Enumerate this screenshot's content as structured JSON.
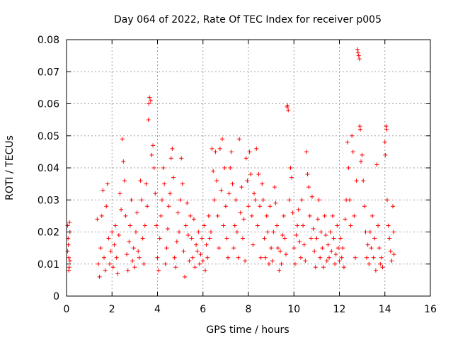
{
  "chart_data": {
    "type": "scatter",
    "title": "Day 064 of 2022, Rate Of TEC Index for receiver p005",
    "xlabel": "GPS time / hours",
    "ylabel": "ROTI / TECUs",
    "xlim": [
      0,
      16
    ],
    "ylim": [
      0,
      0.08
    ],
    "xticks": [
      0,
      2,
      4,
      6,
      8,
      10,
      12,
      14,
      16
    ],
    "xtick_labels": [
      "0",
      "2",
      "4",
      "6",
      "8",
      "10",
      "12",
      "14",
      "16"
    ],
    "yticks": [
      0,
      0.01,
      0.02,
      0.03,
      0.04,
      0.05,
      0.06,
      0.07,
      0.08
    ],
    "ytick_labels": [
      "0",
      "0.01",
      "0.02",
      "0.03",
      "0.04",
      "0.05",
      "0.06",
      "0.07",
      "0.08"
    ],
    "grid": true,
    "marker": "+",
    "color": "#ff0000",
    "series": [
      {
        "name": "ROTI",
        "points": [
          [
            0.05,
            0.022
          ],
          [
            0.08,
            0.016
          ],
          [
            0.1,
            0.012
          ],
          [
            0.12,
            0.009
          ],
          [
            0.15,
            0.02
          ],
          [
            0.05,
            0.014
          ],
          [
            0.1,
            0.008
          ],
          [
            0.13,
            0.023
          ],
          [
            0.07,
            0.018
          ],
          [
            0.15,
            0.011
          ],
          [
            1.35,
            0.024
          ],
          [
            1.4,
            0.01
          ],
          [
            1.45,
            0.006
          ],
          [
            1.5,
            0.015
          ],
          [
            1.55,
            0.025
          ],
          [
            1.6,
            0.033
          ],
          [
            1.65,
            0.012
          ],
          [
            1.7,
            0.008
          ],
          [
            1.75,
            0.028
          ],
          [
            1.8,
            0.035
          ],
          [
            1.85,
            0.018
          ],
          [
            1.9,
            0.01
          ],
          [
            1.95,
            0.014
          ],
          [
            2.0,
            0.02
          ],
          [
            2.05,
            0.009
          ],
          [
            2.1,
            0.016
          ],
          [
            2.15,
            0.022
          ],
          [
            2.2,
            0.012
          ],
          [
            2.25,
            0.007
          ],
          [
            2.3,
            0.019
          ],
          [
            2.35,
            0.032
          ],
          [
            2.4,
            0.027
          ],
          [
            2.45,
            0.049
          ],
          [
            2.5,
            0.042
          ],
          [
            2.55,
            0.036
          ],
          [
            2.6,
            0.025
          ],
          [
            2.65,
            0.013
          ],
          [
            2.7,
            0.008
          ],
          [
            2.75,
            0.017
          ],
          [
            2.8,
            0.022
          ],
          [
            2.85,
            0.03
          ],
          [
            2.9,
            0.011
          ],
          [
            2.95,
            0.015
          ],
          [
            3.0,
            0.009
          ],
          [
            3.05,
            0.02
          ],
          [
            3.1,
            0.026
          ],
          [
            3.15,
            0.014
          ],
          [
            3.2,
            0.012
          ],
          [
            3.25,
            0.036
          ],
          [
            3.3,
            0.03
          ],
          [
            3.35,
            0.018
          ],
          [
            3.4,
            0.01
          ],
          [
            3.45,
            0.022
          ],
          [
            3.5,
            0.035
          ],
          [
            3.55,
            0.028
          ],
          [
            3.6,
            0.055
          ],
          [
            3.62,
            0.06
          ],
          [
            3.65,
            0.062
          ],
          [
            3.7,
            0.061
          ],
          [
            3.75,
            0.044
          ],
          [
            3.8,
            0.047
          ],
          [
            3.85,
            0.04
          ],
          [
            3.9,
            0.032
          ],
          [
            3.95,
            0.022
          ],
          [
            4.0,
            0.012
          ],
          [
            4.05,
            0.008
          ],
          [
            4.1,
            0.018
          ],
          [
            4.15,
            0.025
          ],
          [
            4.2,
            0.03
          ],
          [
            4.25,
            0.04
          ],
          [
            4.3,
            0.035
          ],
          [
            4.35,
            0.01
          ],
          [
            4.4,
            0.015
          ],
          [
            4.45,
            0.021
          ],
          [
            4.5,
            0.028
          ],
          [
            4.55,
            0.032
          ],
          [
            4.6,
            0.043
          ],
          [
            4.65,
            0.046
          ],
          [
            4.7,
            0.037
          ],
          [
            4.75,
            0.012
          ],
          [
            4.8,
            0.009
          ],
          [
            4.85,
            0.017
          ],
          [
            4.9,
            0.026
          ],
          [
            4.95,
            0.02
          ],
          [
            5.0,
            0.03
          ],
          [
            5.05,
            0.043
          ],
          [
            5.1,
            0.035
          ],
          [
            5.15,
            0.014
          ],
          [
            5.2,
            0.006
          ],
          [
            5.25,
            0.022
          ],
          [
            5.3,
            0.029
          ],
          [
            5.35,
            0.019
          ],
          [
            5.4,
            0.011
          ],
          [
            5.45,
            0.025
          ],
          [
            5.5,
            0.018
          ],
          [
            5.55,
            0.012
          ],
          [
            5.6,
            0.024
          ],
          [
            5.65,
            0.009
          ],
          [
            5.7,
            0.016
          ],
          [
            5.75,
            0.014
          ],
          [
            5.8,
            0.02
          ],
          [
            5.85,
            0.01
          ],
          [
            5.9,
            0.013
          ],
          [
            5.95,
            0.018
          ],
          [
            6.0,
            0.011
          ],
          [
            6.05,
            0.022
          ],
          [
            6.1,
            0.008
          ],
          [
            6.15,
            0.016
          ],
          [
            6.2,
            0.012
          ],
          [
            6.25,
            0.025
          ],
          [
            6.3,
            0.018
          ],
          [
            6.35,
            0.02
          ],
          [
            6.4,
            0.046
          ],
          [
            6.45,
            0.039
          ],
          [
            6.5,
            0.03
          ],
          [
            6.55,
            0.045
          ],
          [
            6.6,
            0.036
          ],
          [
            6.65,
            0.025
          ],
          [
            6.7,
            0.015
          ],
          [
            6.75,
            0.046
          ],
          [
            6.8,
            0.033
          ],
          [
            6.85,
            0.049
          ],
          [
            6.9,
            0.022
          ],
          [
            6.95,
            0.04
          ],
          [
            7.0,
            0.028
          ],
          [
            7.05,
            0.018
          ],
          [
            7.1,
            0.012
          ],
          [
            7.15,
            0.032
          ],
          [
            7.2,
            0.04
          ],
          [
            7.25,
            0.045
          ],
          [
            7.3,
            0.035
          ],
          [
            7.35,
            0.015
          ],
          [
            7.4,
            0.022
          ],
          [
            7.45,
            0.03
          ],
          [
            7.5,
            0.02
          ],
          [
            7.55,
            0.012
          ],
          [
            7.6,
            0.049
          ],
          [
            7.65,
            0.026
          ],
          [
            7.7,
            0.034
          ],
          [
            7.75,
            0.018
          ],
          [
            7.8,
            0.024
          ],
          [
            7.85,
            0.011
          ],
          [
            7.9,
            0.043
          ],
          [
            7.95,
            0.036
          ],
          [
            8.0,
            0.028
          ],
          [
            8.05,
            0.045
          ],
          [
            8.1,
            0.038
          ],
          [
            8.15,
            0.025
          ],
          [
            8.2,
            0.016
          ],
          [
            8.25,
            0.032
          ],
          [
            8.3,
            0.03
          ],
          [
            8.35,
            0.046
          ],
          [
            8.4,
            0.022
          ],
          [
            8.45,
            0.038
          ],
          [
            8.5,
            0.028
          ],
          [
            8.55,
            0.012
          ],
          [
            8.6,
            0.035
          ],
          [
            8.65,
            0.03
          ],
          [
            8.7,
            0.018
          ],
          [
            8.75,
            0.012
          ],
          [
            8.8,
            0.025
          ],
          [
            8.85,
            0.02
          ],
          [
            8.9,
            0.01
          ],
          [
            8.95,
            0.028
          ],
          [
            9.0,
            0.015
          ],
          [
            9.05,
            0.011
          ],
          [
            9.1,
            0.02
          ],
          [
            9.15,
            0.034
          ],
          [
            9.2,
            0.029
          ],
          [
            9.25,
            0.022
          ],
          [
            9.3,
            0.015
          ],
          [
            9.35,
            0.008
          ],
          [
            9.4,
            0.014
          ],
          [
            9.45,
            0.01
          ],
          [
            9.5,
            0.019
          ],
          [
            9.55,
            0.025
          ],
          [
            9.6,
            0.018
          ],
          [
            9.65,
            0.013
          ],
          [
            9.7,
            0.059
          ],
          [
            9.72,
            0.0595
          ],
          [
            9.75,
            0.058
          ],
          [
            9.8,
            0.03
          ],
          [
            9.85,
            0.04
          ],
          [
            9.9,
            0.037
          ],
          [
            9.95,
            0.026
          ],
          [
            10.0,
            0.015
          ],
          [
            10.05,
            0.01
          ],
          [
            10.1,
            0.019
          ],
          [
            10.15,
            0.022
          ],
          [
            10.2,
            0.027
          ],
          [
            10.25,
            0.017
          ],
          [
            10.3,
            0.012
          ],
          [
            10.35,
            0.03
          ],
          [
            10.4,
            0.022
          ],
          [
            10.45,
            0.016
          ],
          [
            10.5,
            0.011
          ],
          [
            10.55,
            0.045
          ],
          [
            10.6,
            0.038
          ],
          [
            10.65,
            0.034
          ],
          [
            10.7,
            0.025
          ],
          [
            10.75,
            0.018
          ],
          [
            10.8,
            0.031
          ],
          [
            10.85,
            0.021
          ],
          [
            10.9,
            0.014
          ],
          [
            10.95,
            0.009
          ],
          [
            11.0,
            0.018
          ],
          [
            11.05,
            0.024
          ],
          [
            11.1,
            0.03
          ],
          [
            11.15,
            0.012
          ],
          [
            11.2,
            0.02
          ],
          [
            11.25,
            0.015
          ],
          [
            11.3,
            0.009
          ],
          [
            11.35,
            0.025
          ],
          [
            11.4,
            0.019
          ],
          [
            11.45,
            0.011
          ],
          [
            11.5,
            0.016
          ],
          [
            11.55,
            0.012
          ],
          [
            11.6,
            0.02
          ],
          [
            11.65,
            0.014
          ],
          [
            11.7,
            0.025
          ],
          [
            11.75,
            0.018
          ],
          [
            11.8,
            0.01
          ],
          [
            11.85,
            0.013
          ],
          [
            11.9,
            0.022
          ],
          [
            11.95,
            0.015
          ],
          [
            12.0,
            0.011
          ],
          [
            12.05,
            0.018
          ],
          [
            12.1,
            0.012
          ],
          [
            12.15,
            0.015
          ],
          [
            12.2,
            0.009
          ],
          [
            12.25,
            0.024
          ],
          [
            12.3,
            0.03
          ],
          [
            12.35,
            0.048
          ],
          [
            12.4,
            0.04
          ],
          [
            12.45,
            0.03
          ],
          [
            12.5,
            0.022
          ],
          [
            12.55,
            0.05
          ],
          [
            12.6,
            0.045
          ],
          [
            12.65,
            0.025
          ],
          [
            12.7,
            0.012
          ],
          [
            12.75,
            0.036
          ],
          [
            12.8,
            0.077
          ],
          [
            12.82,
            0.076
          ],
          [
            12.85,
            0.075
          ],
          [
            12.88,
            0.074
          ],
          [
            12.9,
            0.053
          ],
          [
            12.92,
            0.052
          ],
          [
            12.95,
            0.042
          ],
          [
            13.0,
            0.044
          ],
          [
            13.05,
            0.036
          ],
          [
            13.1,
            0.028
          ],
          [
            13.15,
            0.02
          ],
          [
            13.2,
            0.012
          ],
          [
            13.25,
            0.016
          ],
          [
            13.3,
            0.01
          ],
          [
            13.35,
            0.02
          ],
          [
            13.4,
            0.015
          ],
          [
            13.45,
            0.025
          ],
          [
            13.5,
            0.012
          ],
          [
            13.55,
            0.018
          ],
          [
            13.6,
            0.008
          ],
          [
            13.65,
            0.041
          ],
          [
            13.7,
            0.022
          ],
          [
            13.75,
            0.015
          ],
          [
            13.8,
            0.01
          ],
          [
            13.85,
            0.012
          ],
          [
            13.9,
            0.009
          ],
          [
            14.0,
            0.048
          ],
          [
            14.02,
            0.044
          ],
          [
            14.05,
            0.053
          ],
          [
            14.08,
            0.052
          ],
          [
            14.1,
            0.03
          ],
          [
            14.15,
            0.022
          ],
          [
            14.2,
            0.018
          ],
          [
            14.25,
            0.014
          ],
          [
            14.3,
            0.011
          ],
          [
            14.35,
            0.028
          ],
          [
            14.38,
            0.02
          ],
          [
            14.4,
            0.013
          ]
        ]
      }
    ]
  }
}
